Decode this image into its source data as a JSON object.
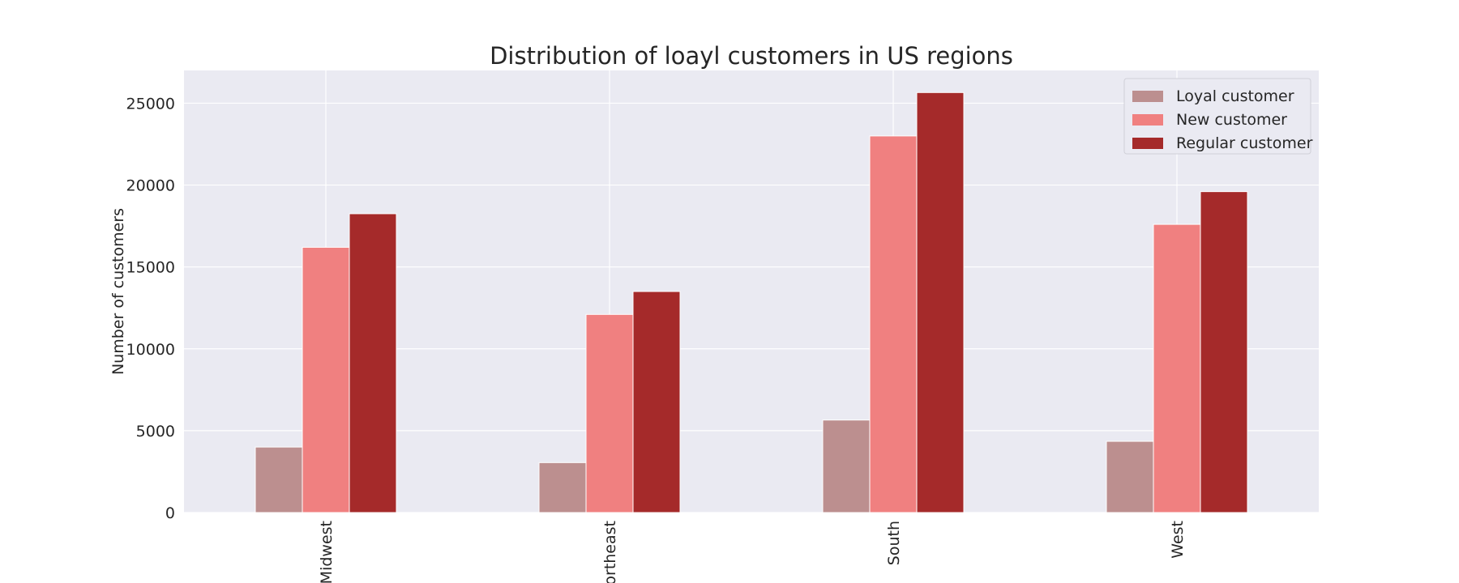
{
  "chart_data": {
    "type": "bar",
    "title": "Distribution of loayl customers in US regions",
    "xlabel": "",
    "ylabel": "Number of customers",
    "categories": [
      "Midwest",
      "Northeast",
      "South",
      "West"
    ],
    "series": [
      {
        "name": "Loyal customer",
        "color": "#bc8f8f",
        "values": [
          4000,
          3050,
          5650,
          4350
        ]
      },
      {
        "name": "New customer",
        "color": "#f08080",
        "values": [
          16200,
          12100,
          23000,
          17600
        ]
      },
      {
        "name": "Regular customer",
        "color": "#a52a2a",
        "values": [
          18250,
          13500,
          25650,
          19600
        ]
      }
    ],
    "ylim": [
      0,
      27000
    ],
    "yticks": [
      0,
      5000,
      10000,
      15000,
      20000,
      25000
    ],
    "grid": true,
    "legend_position": "top-right",
    "background_color": "#eaeaf2"
  }
}
